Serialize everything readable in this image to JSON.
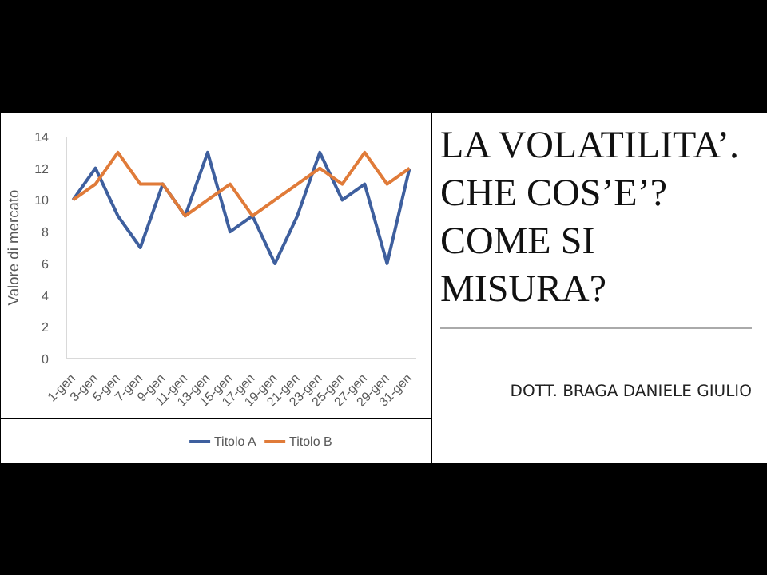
{
  "chart_data": {
    "type": "line",
    "title": "LA VOLATILITA’. CHE COS’E’? COME SI MISURA?",
    "ylabel": "Valore di mercato",
    "categories": [
      "1-gen",
      "3-gen",
      "5-gen",
      "7-gen",
      "9-gen",
      "11-gen",
      "13-gen",
      "15-gen",
      "17-gen",
      "19-gen",
      "21-gen",
      "23-gen",
      "25-gen",
      "27-gen",
      "29-gen",
      "31-gen"
    ],
    "series": [
      {
        "name": "Titolo A",
        "color": "#3e5f9e",
        "values": [
          10,
          12,
          9,
          7,
          11,
          9,
          13,
          8,
          9,
          6,
          9,
          13,
          10,
          11,
          6,
          12
        ]
      },
      {
        "name": "Titolo B",
        "color": "#e07b39",
        "values": [
          10,
          11,
          13,
          11,
          11,
          9,
          10,
          11,
          9,
          10,
          11,
          12,
          11,
          13,
          11,
          12
        ]
      }
    ],
    "ylim": [
      0,
      14
    ],
    "yticks": [
      0,
      2,
      4,
      6,
      8,
      10,
      12,
      14
    ],
    "grid": false,
    "legend": "bottom",
    "line_style": "solid",
    "marker": "none",
    "annotations": [
      "DOTT. BRAGA DANIELE GIULIO"
    ]
  }
}
